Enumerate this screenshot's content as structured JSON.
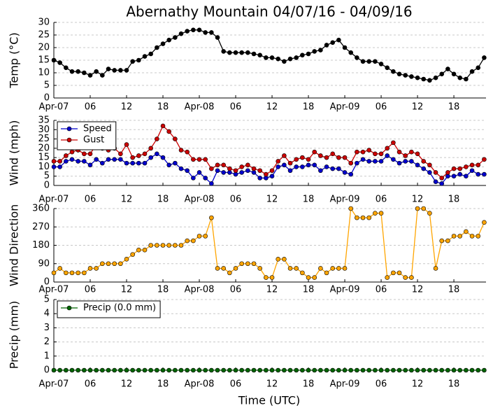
{
  "chart_data": [
    {
      "type": "line",
      "title": "Abernathy Mountain 04/07/16 - 04/09/16",
      "ylabel": "Temp (°C)",
      "x": [
        0,
        1,
        2,
        3,
        4,
        5,
        6,
        7,
        8,
        9,
        10,
        11,
        12,
        13,
        14,
        15,
        16,
        17,
        18,
        19,
        20,
        21,
        22,
        23,
        24,
        25,
        26,
        27,
        28,
        29,
        30,
        31,
        32,
        33,
        34,
        35,
        36,
        37,
        38,
        39,
        40,
        41,
        42,
        43,
        44,
        45,
        46,
        47,
        48,
        49,
        50,
        51,
        52,
        53,
        54,
        55,
        56,
        57,
        58,
        59,
        60,
        61,
        62,
        63,
        64,
        65,
        66,
        67,
        68,
        69,
        70,
        71
      ],
      "series": [
        {
          "color": "#000000",
          "values": [
            15,
            14,
            12,
            10.5,
            10.5,
            10,
            9,
            10.5,
            9,
            11.5,
            11,
            11,
            11,
            14.5,
            15,
            16.5,
            17.5,
            20,
            21.5,
            23,
            24,
            25.5,
            26.5,
            27,
            27,
            26,
            26,
            24,
            18.5,
            18,
            18,
            18,
            18,
            17.5,
            17,
            16,
            16,
            15.5,
            14.5,
            15.5,
            16,
            17,
            17.5,
            18.5,
            19,
            21,
            22,
            23,
            20,
            18,
            16,
            14.5,
            14.5,
            14.5,
            13.5,
            12,
            10.5,
            9.5,
            9,
            8.5,
            8,
            7.5,
            7,
            8,
            9.5,
            11.5,
            9.5,
            8,
            7.5,
            10.5,
            12,
            16
          ]
        }
      ],
      "xlim": [
        0,
        71.3
      ],
      "xticks": [
        {
          "value": 0,
          "label": "Apr-07"
        },
        {
          "value": 6,
          "label": "06"
        },
        {
          "value": 12,
          "label": "12"
        },
        {
          "value": 18,
          "label": "18"
        },
        {
          "value": 24,
          "label": "Apr-08"
        },
        {
          "value": 30,
          "label": "06"
        },
        {
          "value": 36,
          "label": "12"
        },
        {
          "value": 42,
          "label": "18"
        },
        {
          "value": 48,
          "label": "Apr-09"
        },
        {
          "value": 54,
          "label": "06"
        },
        {
          "value": 60,
          "label": "12"
        },
        {
          "value": 66,
          "label": "18"
        }
      ],
      "ylim": [
        0,
        30
      ],
      "yticks": [
        0,
        5,
        10,
        15,
        20,
        25,
        30
      ],
      "grid": true
    },
    {
      "type": "line",
      "ylabel": "Wind (mph)",
      "legend": "upper left",
      "x": [
        0,
        1,
        2,
        3,
        4,
        5,
        6,
        7,
        8,
        9,
        10,
        11,
        12,
        13,
        14,
        15,
        16,
        17,
        18,
        19,
        20,
        21,
        22,
        23,
        24,
        25,
        26,
        27,
        28,
        29,
        30,
        31,
        32,
        33,
        34,
        35,
        36,
        37,
        38,
        39,
        40,
        41,
        42,
        43,
        44,
        45,
        46,
        47,
        48,
        49,
        50,
        51,
        52,
        53,
        54,
        55,
        56,
        57,
        58,
        59,
        60,
        61,
        62,
        63,
        64,
        65,
        66,
        67,
        68,
        69,
        70,
        71
      ],
      "series": [
        {
          "name": "Speed",
          "color": "#0000cc",
          "values": [
            10,
            10,
            13,
            14,
            13,
            13,
            11,
            14,
            12,
            14,
            14,
            14,
            12,
            12,
            12,
            12,
            15,
            17,
            15,
            11,
            12,
            9,
            8,
            4,
            7,
            4,
            1,
            8,
            7,
            7,
            6,
            7,
            8,
            7,
            4,
            4,
            5,
            10,
            11,
            8,
            10,
            10,
            11,
            11,
            8,
            10,
            9,
            9,
            7,
            6,
            12,
            14,
            13,
            13,
            13,
            16,
            14,
            12,
            13,
            13,
            11,
            9,
            7,
            2,
            1,
            5,
            5,
            6,
            5,
            8,
            6,
            6
          ]
        },
        {
          "name": "Gust",
          "color": "#cc0000",
          "values": [
            13,
            13,
            16,
            18,
            19,
            17,
            17,
            22,
            20,
            19,
            20,
            17,
            22,
            15,
            16,
            17,
            20,
            25,
            32,
            29,
            25,
            19,
            18,
            14,
            14,
            14,
            9,
            11,
            11,
            9,
            8,
            10,
            11,
            9,
            8,
            6,
            8,
            13,
            16,
            12,
            14,
            15,
            14,
            18,
            16,
            15,
            17,
            15,
            15,
            12,
            18,
            18,
            19,
            17,
            17,
            20,
            23,
            18,
            16,
            18,
            17,
            13,
            11,
            7,
            4,
            7,
            9,
            9,
            10,
            11,
            11,
            14
          ]
        }
      ],
      "xlim": [
        0,
        71.3
      ],
      "xticks": [
        {
          "value": 0,
          "label": "Apr-07"
        },
        {
          "value": 6,
          "label": "06"
        },
        {
          "value": 12,
          "label": "12"
        },
        {
          "value": 18,
          "label": "18"
        },
        {
          "value": 24,
          "label": "Apr-08"
        },
        {
          "value": 30,
          "label": "06"
        },
        {
          "value": 36,
          "label": "12"
        },
        {
          "value": 42,
          "label": "18"
        },
        {
          "value": 48,
          "label": "Apr-09"
        },
        {
          "value": 54,
          "label": "06"
        },
        {
          "value": 60,
          "label": "12"
        },
        {
          "value": 66,
          "label": "18"
        }
      ],
      "ylim": [
        0,
        35
      ],
      "yticks": [
        0,
        5,
        10,
        15,
        20,
        25,
        30,
        35
      ],
      "grid": true
    },
    {
      "type": "line",
      "ylabel": "Wind Direction",
      "x": [
        0,
        1,
        2,
        3,
        4,
        5,
        6,
        7,
        8,
        9,
        10,
        11,
        12,
        13,
        14,
        15,
        16,
        17,
        18,
        19,
        20,
        21,
        22,
        23,
        24,
        25,
        26,
        27,
        28,
        29,
        30,
        31,
        32,
        33,
        34,
        35,
        36,
        37,
        38,
        39,
        40,
        41,
        42,
        43,
        44,
        45,
        46,
        47,
        48,
        49,
        50,
        51,
        52,
        53,
        54,
        55,
        56,
        57,
        58,
        59,
        60,
        61,
        62,
        63,
        64,
        65,
        66,
        67,
        68,
        69,
        70,
        71
      ],
      "series": [
        {
          "color": "#ffa500",
          "values": [
            45,
            67,
            45,
            45,
            45,
            45,
            67,
            67,
            90,
            90,
            90,
            90,
            112,
            135,
            157,
            157,
            180,
            180,
            180,
            180,
            180,
            180,
            202,
            202,
            225,
            225,
            315,
            67,
            67,
            45,
            67,
            90,
            90,
            90,
            67,
            22,
            22,
            112,
            112,
            67,
            67,
            45,
            22,
            22,
            67,
            45,
            67,
            67,
            67,
            360,
            315,
            315,
            315,
            337,
            337,
            22,
            45,
            45,
            22,
            22,
            360,
            360,
            337,
            67,
            202,
            202,
            225,
            225,
            247,
            225,
            225,
            292
          ]
        }
      ],
      "xlim": [
        0,
        71.3
      ],
      "xticks": [
        {
          "value": 0,
          "label": "Apr-07"
        },
        {
          "value": 6,
          "label": "06"
        },
        {
          "value": 12,
          "label": "12"
        },
        {
          "value": 18,
          "label": "18"
        },
        {
          "value": 24,
          "label": "Apr-08"
        },
        {
          "value": 30,
          "label": "06"
        },
        {
          "value": 36,
          "label": "12"
        },
        {
          "value": 42,
          "label": "18"
        },
        {
          "value": 48,
          "label": "Apr-09"
        },
        {
          "value": 54,
          "label": "06"
        },
        {
          "value": 60,
          "label": "12"
        },
        {
          "value": 66,
          "label": "18"
        }
      ],
      "ylim": [
        0,
        360
      ],
      "yticks": [
        0,
        90,
        180,
        270,
        360
      ],
      "grid": true
    },
    {
      "type": "line",
      "ylabel": "Precip (mm)",
      "xlabel": "Time (UTC)",
      "legend": "upper left",
      "x": [
        0,
        1,
        2,
        3,
        4,
        5,
        6,
        7,
        8,
        9,
        10,
        11,
        12,
        13,
        14,
        15,
        16,
        17,
        18,
        19,
        20,
        21,
        22,
        23,
        24,
        25,
        26,
        27,
        28,
        29,
        30,
        31,
        32,
        33,
        34,
        35,
        36,
        37,
        38,
        39,
        40,
        41,
        42,
        43,
        44,
        45,
        46,
        47,
        48,
        49,
        50,
        51,
        52,
        53,
        54,
        55,
        56,
        57,
        58,
        59,
        60,
        61,
        62,
        63,
        64,
        65,
        66,
        67,
        68,
        69,
        70,
        71
      ],
      "series": [
        {
          "name": "Precip (0.0 mm)",
          "color": "#006400",
          "values": [
            0,
            0,
            0,
            0,
            0,
            0,
            0,
            0,
            0,
            0,
            0,
            0,
            0,
            0,
            0,
            0,
            0,
            0,
            0,
            0,
            0,
            0,
            0,
            0,
            0,
            0,
            0,
            0,
            0,
            0,
            0,
            0,
            0,
            0,
            0,
            0,
            0,
            0,
            0,
            0,
            0,
            0,
            0,
            0,
            0,
            0,
            0,
            0,
            0,
            0,
            0,
            0,
            0,
            0,
            0,
            0,
            0,
            0,
            0,
            0,
            0,
            0,
            0,
            0,
            0,
            0,
            0,
            0,
            0,
            0,
            0,
            0
          ]
        }
      ],
      "xlim": [
        0,
        71.3
      ],
      "xticks": [
        {
          "value": 0,
          "label": "Apr-07"
        },
        {
          "value": 6,
          "label": "06"
        },
        {
          "value": 12,
          "label": "12"
        },
        {
          "value": 18,
          "label": "18"
        },
        {
          "value": 24,
          "label": "Apr-08"
        },
        {
          "value": 30,
          "label": "06"
        },
        {
          "value": 36,
          "label": "12"
        },
        {
          "value": 42,
          "label": "18"
        },
        {
          "value": 48,
          "label": "Apr-09"
        },
        {
          "value": 54,
          "label": "06"
        },
        {
          "value": 60,
          "label": "12"
        },
        {
          "value": 66,
          "label": "18"
        }
      ],
      "ylim": [
        0,
        5
      ],
      "yticks": [
        0,
        1,
        2,
        3,
        4,
        5
      ],
      "grid": true
    }
  ]
}
